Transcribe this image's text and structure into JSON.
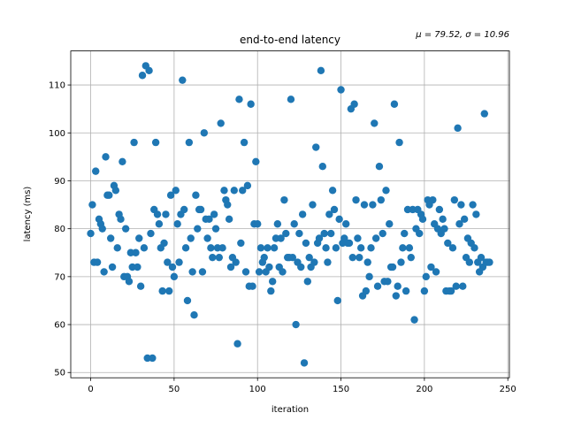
{
  "chart_data": {
    "type": "scatter",
    "title": "end-to-end latency",
    "annotation": "μ = 79.52, σ = 10.96",
    "x_label": "iteration",
    "y_label": "latency (ms)",
    "xlim": [
      -11.95,
      250.95
    ],
    "ylim": [
      48.9,
      117.1
    ],
    "xticks": [
      0,
      50,
      100,
      150,
      200,
      250
    ],
    "yticks": [
      50,
      60,
      70,
      80,
      90,
      100,
      110
    ],
    "grid": true,
    "series": [
      {
        "name": "latency",
        "color": "#1f77b4",
        "x": [
          0,
          1,
          2,
          3,
          4,
          5,
          6,
          7,
          8,
          9,
          10,
          11,
          12,
          13,
          14,
          15,
          16,
          17,
          18,
          19,
          20,
          21,
          22,
          23,
          24,
          25,
          26,
          27,
          28,
          29,
          30,
          31,
          32,
          33,
          34,
          35,
          36,
          37,
          38,
          39,
          40,
          41,
          42,
          43,
          44,
          45,
          46,
          47,
          48,
          49,
          50,
          51,
          52,
          53,
          54,
          55,
          56,
          57,
          58,
          59,
          60,
          61,
          62,
          63,
          64,
          65,
          66,
          67,
          68,
          69,
          70,
          71,
          72,
          73,
          74,
          75,
          76,
          77,
          78,
          79,
          80,
          81,
          82,
          83,
          84,
          85,
          86,
          87,
          88,
          89,
          90,
          91,
          92,
          93,
          94,
          95,
          96,
          97,
          98,
          99,
          100,
          101,
          102,
          103,
          104,
          105,
          106,
          107,
          108,
          109,
          110,
          111,
          112,
          113,
          114,
          115,
          116,
          117,
          118,
          119,
          120,
          121,
          122,
          123,
          124,
          125,
          126,
          127,
          128,
          129,
          130,
          131,
          132,
          133,
          134,
          135,
          136,
          137,
          138,
          139,
          140,
          141,
          142,
          143,
          144,
          145,
          146,
          147,
          148,
          149,
          150,
          151,
          152,
          153,
          154,
          155,
          156,
          157,
          158,
          159,
          160,
          161,
          162,
          163,
          164,
          165,
          166,
          167,
          168,
          169,
          170,
          171,
          172,
          173,
          174,
          175,
          176,
          177,
          178,
          179,
          180,
          181,
          182,
          183,
          184,
          185,
          186,
          187,
          188,
          189,
          190,
          191,
          192,
          193,
          194,
          195,
          196,
          197,
          198,
          199,
          200,
          201,
          202,
          203,
          204,
          205,
          206,
          207,
          208,
          209,
          210,
          211,
          212,
          213,
          214,
          215,
          216,
          217,
          218,
          219,
          220,
          221,
          222,
          223,
          224,
          225,
          226,
          227,
          228,
          229,
          230,
          231,
          232,
          233,
          234,
          235,
          236,
          237,
          238,
          239
        ],
        "values": [
          79,
          85,
          73,
          92,
          73,
          82,
          81,
          80,
          71,
          95,
          87,
          87,
          78,
          72,
          89,
          88,
          76,
          83,
          82,
          94,
          70,
          80,
          70,
          69,
          75,
          72,
          98,
          75,
          72,
          78,
          68,
          112,
          76,
          114,
          53,
          113,
          79,
          53,
          84,
          98,
          83,
          81,
          76,
          67,
          77,
          83,
          73,
          67,
          87,
          72,
          70,
          88,
          81,
          73,
          83,
          111,
          84,
          76,
          65,
          98,
          78,
          71,
          62,
          87,
          80,
          84,
          84,
          71,
          100,
          82,
          78,
          82,
          76,
          74,
          83,
          80,
          76,
          74,
          102,
          76,
          88,
          86,
          85,
          82,
          72,
          74,
          88,
          73,
          56,
          107,
          77,
          88,
          98,
          71,
          89,
          68,
          106,
          68,
          81,
          94,
          81,
          71,
          76,
          73,
          74,
          71,
          76,
          72,
          67,
          69,
          76,
          78,
          81,
          72,
          78,
          71,
          86,
          79,
          74,
          74,
          107,
          74,
          81,
          60,
          73,
          79,
          72,
          83,
          52,
          77,
          69,
          74,
          72,
          85,
          73,
          97,
          77,
          78,
          113,
          93,
          79,
          76,
          73,
          83,
          79,
          88,
          84,
          76,
          65,
          82,
          109,
          77,
          78,
          81,
          77,
          77,
          105,
          74,
          106,
          86,
          78,
          74,
          76,
          66,
          85,
          67,
          73,
          70,
          76,
          85,
          102,
          78,
          68,
          93,
          86,
          79,
          69,
          88,
          69,
          81,
          72,
          72,
          106,
          66,
          68,
          98,
          73,
          76,
          79,
          67,
          84,
          76,
          74,
          84,
          61,
          80,
          84,
          79,
          83,
          82,
          67,
          70,
          86,
          85,
          72,
          86,
          81,
          71,
          80,
          84,
          79,
          82,
          80,
          67,
          77,
          67,
          67,
          76,
          86,
          68,
          101,
          81,
          85,
          68,
          82,
          74,
          78,
          73,
          77,
          85,
          76,
          83,
          73,
          71,
          74,
          72,
          104,
          73,
          73,
          73
        ]
      }
    ]
  }
}
